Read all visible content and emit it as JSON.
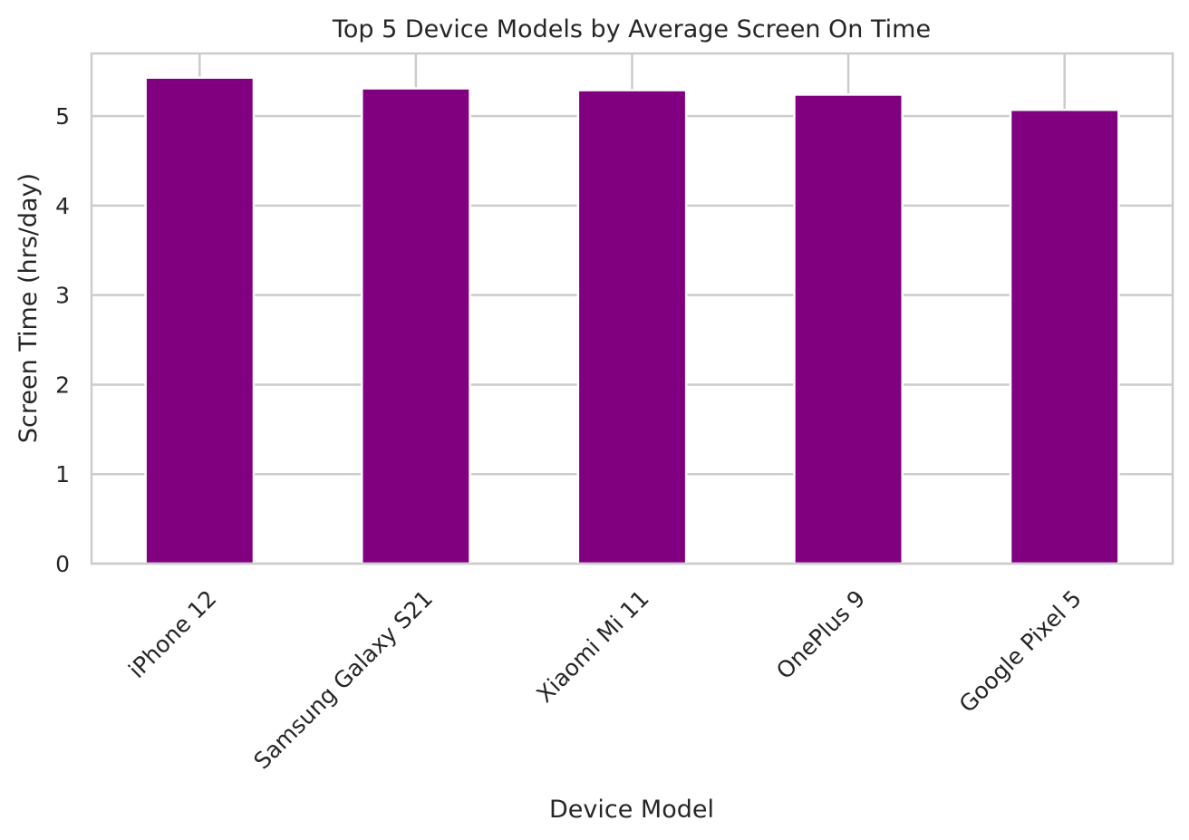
{
  "chart_data": {
    "type": "bar",
    "title": "Top 5 Device Models by Average Screen On Time",
    "xlabel": "Device Model",
    "ylabel": "Screen Time (hrs/day)",
    "categories": [
      "iPhone 12",
      "Samsung Galaxy S21",
      "Xiaomi Mi 11",
      "OnePlus 9",
      "Google Pixel 5"
    ],
    "values": [
      5.43,
      5.31,
      5.29,
      5.24,
      5.07
    ],
    "ylim": [
      0,
      5.7
    ],
    "yticks": [
      0,
      1,
      2,
      3,
      4,
      5
    ],
    "ytick_labels": [
      "0",
      "1",
      "2",
      "3",
      "4",
      "5"
    ],
    "grid": true,
    "bar_color": "#800080",
    "grid_color": "#cccccc",
    "axis_color": "#cccccc",
    "text_color": "#262626"
  }
}
